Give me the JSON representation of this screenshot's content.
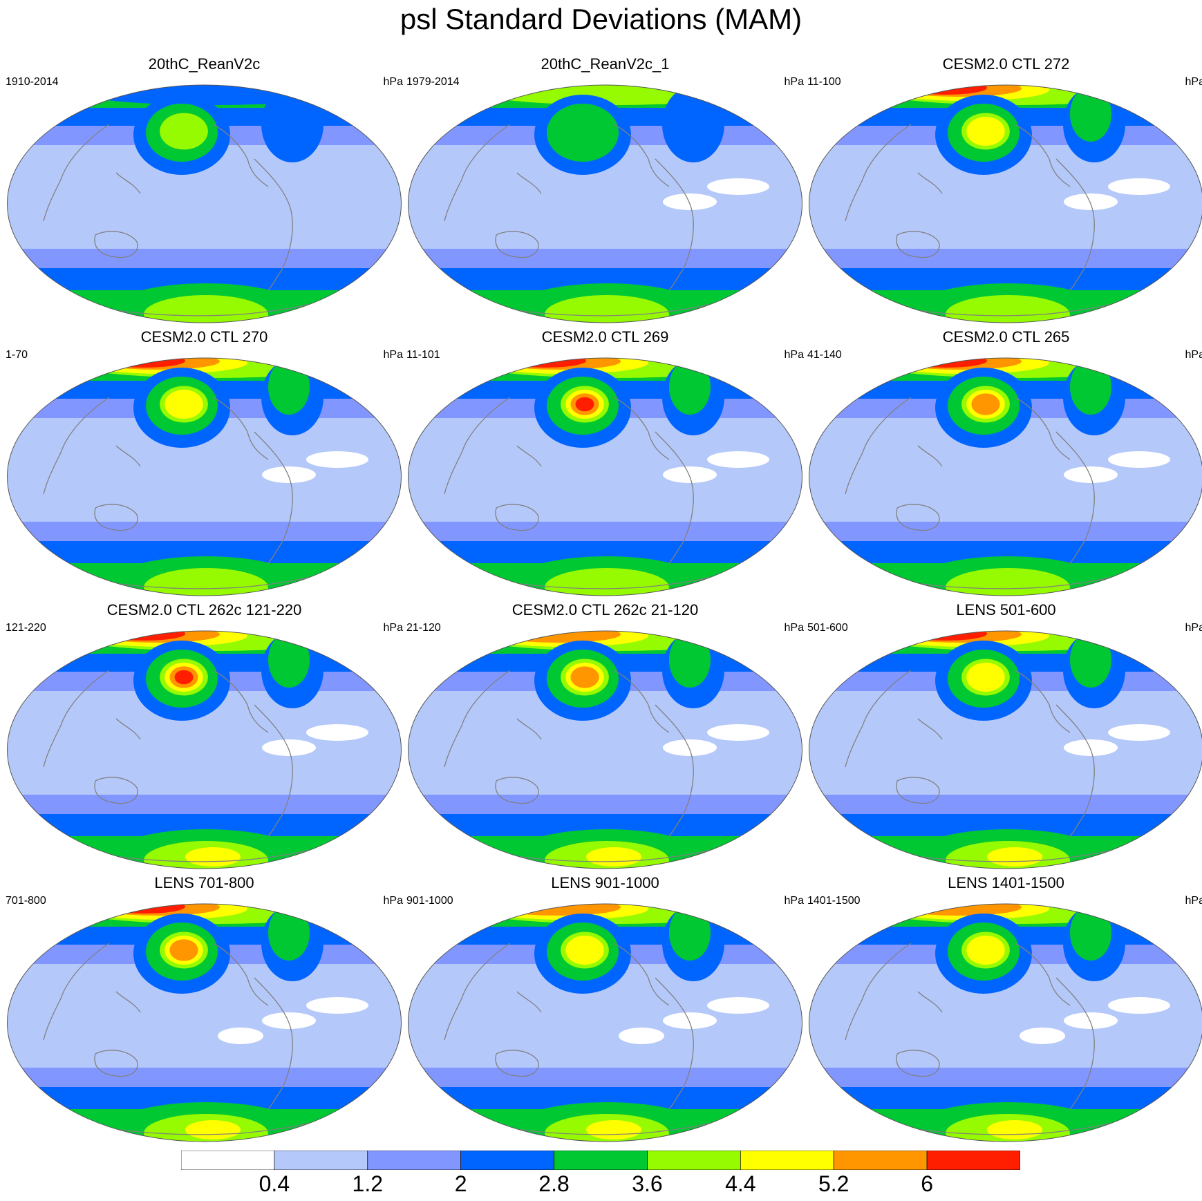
{
  "title": "psl Standard Deviations (MAM)",
  "units_label": "hPa",
  "panels": [
    {
      "title": "20thC_ReanV2c",
      "period": "1910-2014",
      "arctic_level": 3,
      "npac_level": 5,
      "natl_level": 3,
      "south_level": 4,
      "trop_light": 0
    },
    {
      "title": "20thC_ReanV2c_1",
      "period": "1979-2014",
      "arctic_level": 5,
      "npac_level": 4,
      "natl_level": 3,
      "south_level": 5,
      "trop_light": 2
    },
    {
      "title": "CESM2.0 CTL 272",
      "period": "11-100",
      "arctic_level": 8,
      "npac_level": 6,
      "natl_level": 4,
      "south_level": 4,
      "trop_light": 2
    },
    {
      "title": "CESM2.0 CTL 270",
      "period": "1-70",
      "arctic_level": 8,
      "npac_level": 6,
      "natl_level": 4,
      "south_level": 5,
      "trop_light": 2
    },
    {
      "title": "CESM2.0 CTL 269",
      "period": "11-101",
      "arctic_level": 8,
      "npac_level": 8,
      "natl_level": 4,
      "south_level": 5,
      "trop_light": 2
    },
    {
      "title": "CESM2.0 CTL 265",
      "period": "41-140",
      "arctic_level": 8,
      "npac_level": 7,
      "natl_level": 4,
      "south_level": 5,
      "trop_light": 2
    },
    {
      "title": "CESM2.0 CTL 262c 121-220",
      "period": "121-220",
      "arctic_level": 8,
      "npac_level": 8,
      "natl_level": 4,
      "south_level": 6,
      "trop_light": 2
    },
    {
      "title": "CESM2.0 CTL 262c 21-120",
      "period": "21-120",
      "arctic_level": 7,
      "npac_level": 7,
      "natl_level": 4,
      "south_level": 6,
      "trop_light": 2
    },
    {
      "title": "LENS 501-600",
      "period": "501-600",
      "arctic_level": 8,
      "npac_level": 6,
      "natl_level": 4,
      "south_level": 6,
      "trop_light": 2
    },
    {
      "title": "LENS 701-800",
      "period": "701-800",
      "arctic_level": 8,
      "npac_level": 7,
      "natl_level": 4,
      "south_level": 6,
      "trop_light": 3
    },
    {
      "title": "LENS 901-1000",
      "period": "901-1000",
      "arctic_level": 7,
      "npac_level": 6,
      "natl_level": 4,
      "south_level": 6,
      "trop_light": 3
    },
    {
      "title": "LENS 1401-1500",
      "period": "1401-1500",
      "arctic_level": 7,
      "npac_level": 6,
      "natl_level": 4,
      "south_level": 6,
      "trop_light": 3
    }
  ],
  "colorbar": {
    "colors": [
      "#ffffff",
      "#b4c8fa",
      "#8296ff",
      "#0064ff",
      "#00c832",
      "#96fa00",
      "#ffff00",
      "#ff9600",
      "#ff1e00"
    ],
    "labels": [
      "0.4",
      "1.2",
      "2",
      "2.8",
      "3.6",
      "4.4",
      "5.2",
      "6"
    ]
  }
}
